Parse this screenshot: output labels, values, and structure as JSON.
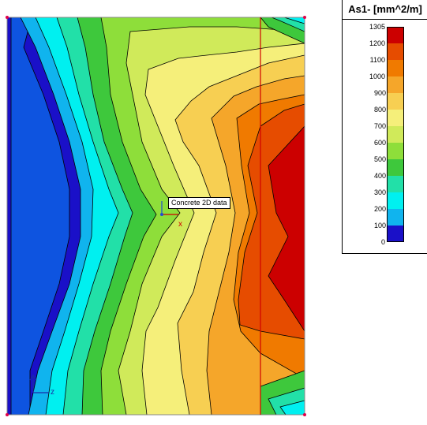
{
  "legend": {
    "title": "As1- [mm^2/m]",
    "levels": [
      {
        "label": "1305",
        "color": "#cc0000"
      },
      {
        "label": "1200",
        "color": "#e64c00"
      },
      {
        "label": "1100",
        "color": "#f07a00"
      },
      {
        "label": "1000",
        "color": "#f5a62a"
      },
      {
        "label": "900",
        "color": "#f7cf52"
      },
      {
        "label": "800",
        "color": "#f5ef7a"
      },
      {
        "label": "700",
        "color": "#d0ea5a"
      },
      {
        "label": "600",
        "color": "#8ede3a"
      },
      {
        "label": "500",
        "color": "#3ec83c"
      },
      {
        "label": "400",
        "color": "#22e0a8"
      },
      {
        "label": "300",
        "color": "#00f0f0"
      },
      {
        "label": "200",
        "color": "#10b4ee"
      },
      {
        "label": "100",
        "color": "#0e54e0"
      },
      {
        "label": "0",
        "color": "#1a10c8"
      }
    ]
  },
  "model": {
    "element_tag": "Concrete 2D data",
    "axis_labels": {
      "x": "x",
      "z": "z"
    }
  }
}
